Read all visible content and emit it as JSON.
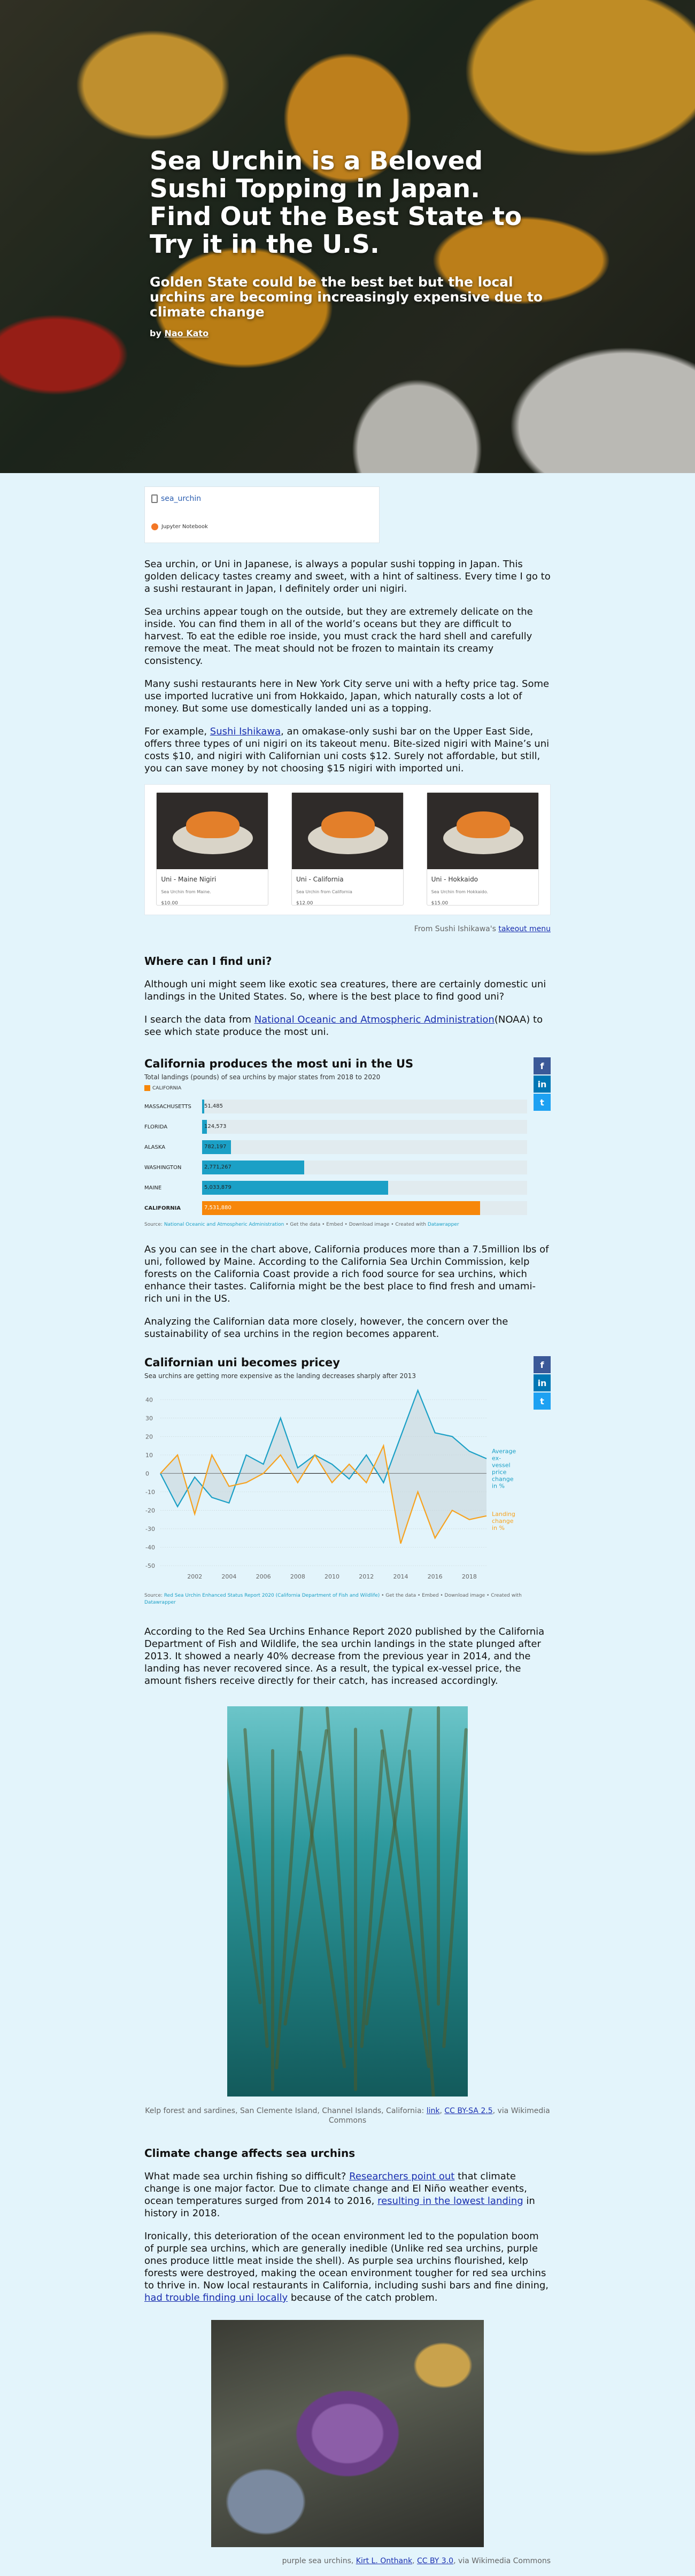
{
  "hero": {
    "title": "Sea Urchin is a Beloved Sushi Topping in Japan. Find Out the Best State to Try it in the U.S.",
    "subtitle": "Golden State could be the best bet but the local urchins are becoming increasingly expensive due to climate change",
    "by_label": "by",
    "author": "Nao Kato"
  },
  "notebook": {
    "name": "sea_urchin",
    "footer": "Jupyter Notebook",
    "icon": "notebook-icon"
  },
  "intro": {
    "p1": "Sea urchin, or Uni in Japanese, is always a popular sushi topping in Japan. This golden delicacy tastes creamy and sweet, with a hint of saltiness. Every time I go to a sushi restaurant in Japan, I definitely order uni nigiri.",
    "p2": "Sea urchins appear tough on the outside, but they are extremely delicate on the inside. You can find them in all of the world’s oceans but they are difficult to harvest. To eat the edible roe inside, you must crack the hard shell and carefully remove the meat. The meat should not be frozen to maintain its creamy consistency.",
    "p3": "Many sushi restaurants here in New York City serve uni with a hefty price tag. Some use imported lucrative uni from Hokkaido, Japan, which naturally costs a lot of money. But some use domestically landed uni as a topping.",
    "p4_pre": "For example, ",
    "p4_link": "Sushi Ishikawa",
    "p4_post": ", an omakase-only sushi bar on the Upper East Side, offers three types of uni nigiri on its takeout menu. Bite-sized nigiri with Maine’s uni costs $10, and nigiri with Californian uni costs $12. Surely not affordable, but still, you can save money by not choosing $15 nigiri with imported uni."
  },
  "menu": {
    "items": [
      {
        "name": "Uni - Maine Nigiri",
        "desc": "Sea Urchin from Maine.",
        "price": "$10.00"
      },
      {
        "name": "Uni - California",
        "desc": "Sea Urchin from California",
        "price": "$12.00"
      },
      {
        "name": "Uni - Hokkaido",
        "desc": "Sea Urchin from Hokkaido.",
        "price": "$15.00"
      }
    ],
    "caption_pre": "From Sushi Ishikawa's ",
    "caption_link": "takeout menu"
  },
  "where": {
    "heading": "Where can I find uni?",
    "p1": "Although uni might seem like exotic sea creatures, there are certainly domestic uni landings in the United States. So, where is the best place to find good uni?",
    "p2_pre": "I search the data from ",
    "p2_link": "National Oceanic and Atmospheric Administration",
    "p2_post": "(NOAA) to see which state produce the most uni."
  },
  "share": {
    "facebook": "f",
    "linkedin": "in",
    "twitter": "t"
  },
  "bar_chart": {
    "title": "California produces the most uni in the US",
    "subtitle": "Total landings (pounds) of sea urchins by major states from 2018 to 2020",
    "legend": "CALIFORNIA",
    "highlight_color": "#f7870a",
    "bar_color": "#1ba0c6",
    "source_pre": "Source: ",
    "source_link": "National Oceanic and Atmospheric Administration",
    "source_tail": " • Get the data • Embed • Download image",
    "source_credit": " • Created with ",
    "source_tool": "Datawrapper"
  },
  "after_bar": {
    "p1": "As you can see in the chart above, California produces more than a 7.5million lbs of uni, followed by Maine. According to the California Sea Urchin Commission, kelp forests on the California Coast provide a rich food source for sea urchins, which enhance their tastes. California might be the best place to find fresh and umami-rich uni in the US.",
    "p2": "Analyzing the Californian data more closely, however, the concern over the sustainability of sea urchins in the region becomes apparent."
  },
  "line_chart": {
    "title": "Californian uni becomes pricey",
    "subtitle": "Sea urchins are getting more expensive as the landing decreases sharply after 2013",
    "label_price": [
      "Average",
      "ex-",
      "vessel",
      "price",
      "change",
      "in %"
    ],
    "label_landing": [
      "Landing",
      "change",
      "in %"
    ],
    "price_color": "#1ba0c6",
    "landing_color": "#f7a21e",
    "source_pre": "Source: ",
    "source_link": "Red Sea Urchin Enhanced Status Report 2020 (California Department of Fish and Wildlife)",
    "source_tail": " • Get the data • Embed • Download image • Created with ",
    "source_tool": "Datawrapper"
  },
  "after_line": {
    "p1": "According to the Red Sea Urchins Enhance Report 2020 published by the California Department of Fish and Wildlife, the sea urchin landings in the state plunged after 2013. It showed a nearly 40% decrease from the previous year in 2014, and the landing has never recovered since. As a result, the typical ex-vessel price, the amount fishers receive directly for their catch, has increased accordingly."
  },
  "kelp_caption": {
    "text": "Kelp forest and sardines, San Clemente Island, Channel Islands, California: ",
    "link1": "link",
    "sep": ", ",
    "link2": "CC BY-SA 2.5",
    "tail": ", via Wikimedia Commons"
  },
  "climate": {
    "heading": "Climate change affects sea urchins",
    "p1_pre": "What made sea urchin fishing so difficult? ",
    "p1_link1": "Researchers point out",
    "p1_mid": " that climate change is one major factor. Due to climate change and El Niño weather events, ocean temperatures surged from 2014 to 2016, ",
    "p1_link2": "resulting in the lowest landing",
    "p1_post": " in history in 2018.",
    "p2_pre": "Ironically, this deterioration of the ocean environment led to the population boom of purple sea urchins, which are generally inedible (Unlike red sea urchins, purple ones produce little meat inside the shell). As purple sea urchins flourished, kelp forests were destroyed, making the ocean environment tougher for red sea urchins to thrive in. Now local restaurants in California, including sushi bars and fine dining, ",
    "p2_link": "had trouble finding uni locally",
    "p2_post": " because of the catch problem."
  },
  "urchin_caption": {
    "text": "purple sea urchins, ",
    "link1": "Kirt L. Onthank",
    "sep": ", ",
    "link2": "CC BY 3.0",
    "tail": ", via Wikimedia Commons"
  },
  "chart_data": [
    {
      "type": "bar",
      "title": "California produces the most uni in the US",
      "subtitle": "Total landings (pounds) of sea urchins by major states from 2018 to 2020",
      "categories": [
        "MASSACHUSETTS",
        "FLORIDA",
        "ALASKA",
        "WASHINGTON",
        "MAINE",
        "CALIFORNIA"
      ],
      "labels": [
        "51,485",
        "124,573",
        "782,197",
        "2,771,267",
        "5,033,879",
        "7,531,880"
      ],
      "values": [
        51485,
        124573,
        782197,
        2771267,
        5033879,
        7531880
      ],
      "highlight": "CALIFORNIA",
      "legend": "CALIFORNIA",
      "xlim": [
        0,
        8800000
      ]
    },
    {
      "type": "line",
      "title": "Californian uni becomes pricey",
      "subtitle": "Sea urchins are getting more expensive as the landing decreases sharply after 2013",
      "x": [
        2000,
        2001,
        2002,
        2003,
        2004,
        2005,
        2006,
        2007,
        2008,
        2009,
        2010,
        2011,
        2012,
        2013,
        2014,
        2015,
        2016,
        2017,
        2018,
        2019
      ],
      "x_ticks": [
        "2002",
        "2004",
        "2006",
        "2008",
        "2010",
        "2012",
        "2014",
        "2016",
        "2018"
      ],
      "y_ticks": [
        "40",
        "30",
        "20",
        "10",
        "0",
        "-10",
        "-20",
        "-30",
        "-40",
        "-50"
      ],
      "ylim": [
        -50,
        45
      ],
      "series": [
        {
          "name": "Average ex-vessel price change in %",
          "values": [
            0,
            -18,
            -2,
            -13,
            -16,
            10,
            5,
            30,
            3,
            10,
            5,
            -3,
            10,
            -5,
            20,
            45,
            22,
            20,
            12,
            8
          ]
        },
        {
          "name": "Landing change in %",
          "values": [
            0,
            10,
            -22,
            10,
            -7,
            -5,
            0,
            10,
            -5,
            10,
            -5,
            5,
            -5,
            15,
            -38,
            -10,
            -35,
            -20,
            -25,
            -23
          ]
        }
      ]
    }
  ]
}
